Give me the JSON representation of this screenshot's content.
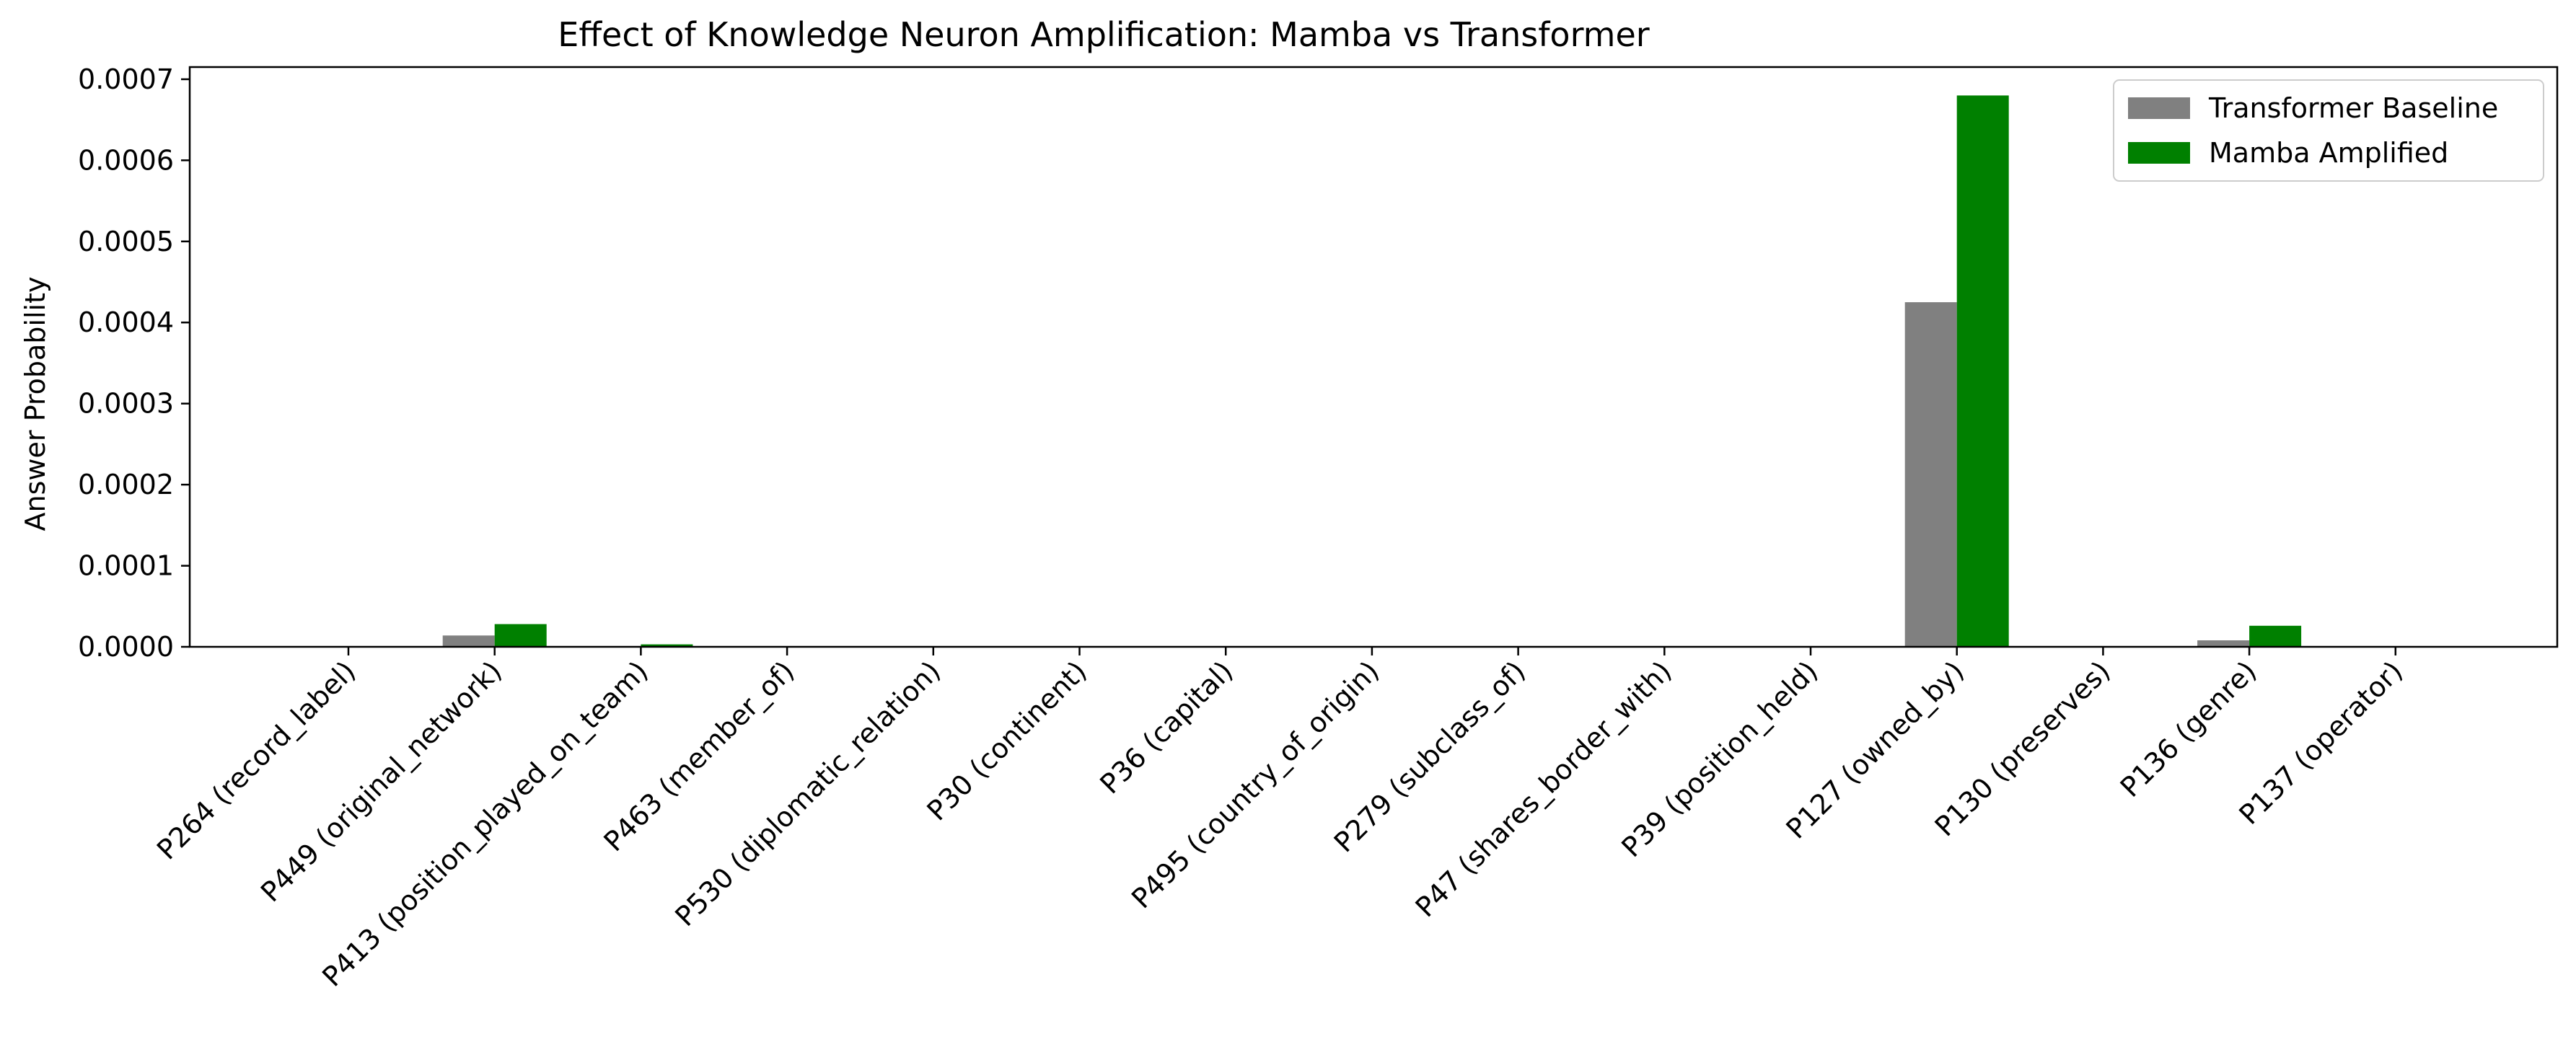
{
  "chart_data": {
    "type": "bar",
    "title": "Effect of Knowledge Neuron Amplification: Mamba vs Transformer",
    "xlabel": "",
    "ylabel": "Answer Probability",
    "ylim": [
      0,
      0.000715
    ],
    "yticks": [
      "0.0000",
      "0.0001",
      "0.0002",
      "0.0003",
      "0.0004",
      "0.0005",
      "0.0006",
      "0.0007"
    ],
    "ytick_values": [
      0,
      0.0001,
      0.0002,
      0.0003,
      0.0004,
      0.0005,
      0.0006,
      0.0007
    ],
    "grid": false,
    "legend_position": "top-right",
    "categories": [
      "P264 (record_label)",
      "P449 (original_network)",
      "P413 (position_played_on_team)",
      "P463 (member_of)",
      "P530 (diplomatic_relation)",
      "P30 (continent)",
      "P36 (capital)",
      "P495 (country_of_origin)",
      "P279 (subclass_of)",
      "P47 (shares_border_with)",
      "P39 (position_held)",
      "P127 (owned_by)",
      "P130 (preserves)",
      "P136 (genre)",
      "P137 (operator)"
    ],
    "series": [
      {
        "name": "Transformer Baseline",
        "color": "#808080",
        "values": [
          0,
          1.4e-05,
          0,
          0,
          0,
          0,
          0,
          0,
          0,
          0,
          0,
          0.000425,
          0,
          8e-06,
          0
        ]
      },
      {
        "name": "Mamba Amplified",
        "color": "#008000",
        "values": [
          0,
          2.8e-05,
          3e-06,
          0,
          0,
          0,
          0,
          0,
          0,
          0,
          0,
          0.00068,
          0,
          2.6e-05,
          0
        ]
      }
    ]
  }
}
